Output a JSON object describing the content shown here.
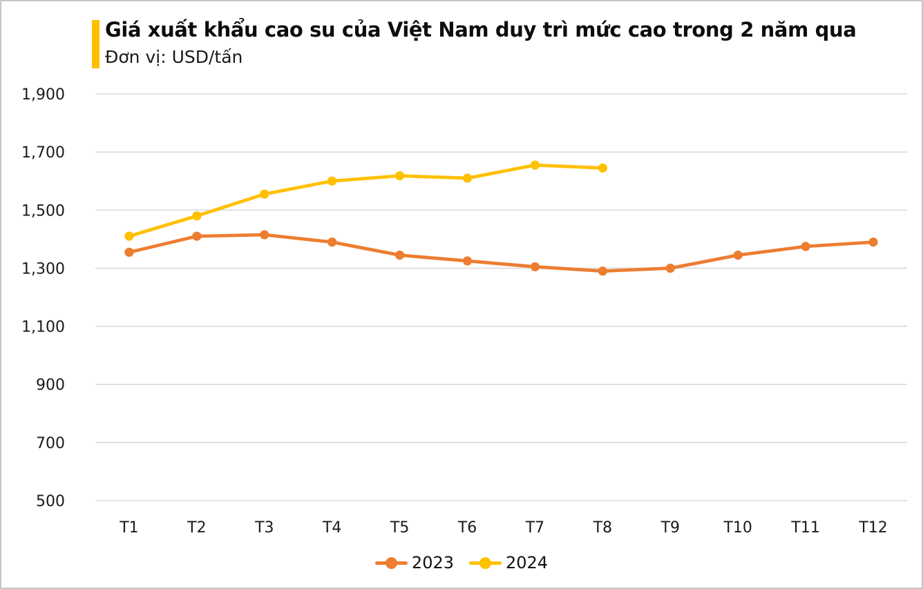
{
  "page": {
    "background": "#ffffff",
    "border_color": "#c6c6c6"
  },
  "header": {
    "accent_color": "#FFC000",
    "title": "Giá xuất khẩu cao su của Việt Nam duy trì mức cao trong 2 năm qua",
    "subtitle": "Đơn vị: USD/tấn"
  },
  "chart_data": {
    "type": "line",
    "title": "Giá xuất khẩu cao su của Việt Nam duy trì mức cao trong 2 năm qua",
    "unit": "USD/tấn",
    "categories": [
      "T1",
      "T2",
      "T3",
      "T4",
      "T5",
      "T6",
      "T7",
      "T8",
      "T9",
      "T10",
      "T11",
      "T12"
    ],
    "series": [
      {
        "name": "2023",
        "color": "#ED7D31",
        "values": [
          1355,
          1410,
          1415,
          1390,
          1345,
          1325,
          1305,
          1290,
          1300,
          1345,
          1375,
          1390
        ]
      },
      {
        "name": "2024",
        "color": "#FFC000",
        "values": [
          1410,
          1480,
          1555,
          1600,
          1618,
          1610,
          1655,
          1645
        ]
      }
    ],
    "ylim": [
      500,
      1900
    ],
    "ytick_step": 200,
    "ytick_labels": [
      "500",
      "700",
      "900",
      "1,100",
      "1,300",
      "1,500",
      "1,700",
      "1,900"
    ],
    "grid": true,
    "gridline_color": "#D9D9D9",
    "axis_text_color": "#1a1a1a",
    "legend_position": "bottom"
  }
}
